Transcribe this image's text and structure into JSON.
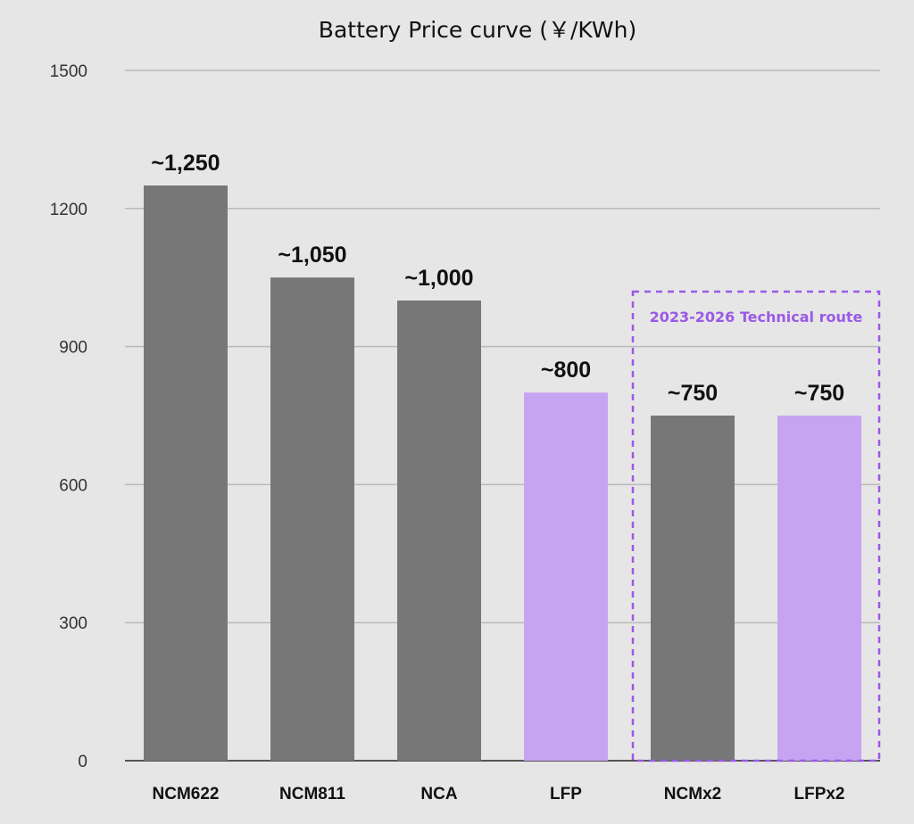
{
  "chart_data": {
    "type": "bar",
    "title": "Battery Price curve (￥/KWh)",
    "xlabel": "",
    "ylabel": "",
    "ylim": [
      0,
      1500
    ],
    "yticks": [
      "0",
      "300",
      "600",
      "900",
      "1200",
      "1500"
    ],
    "grid": true,
    "categories": [
      "NCM622",
      "NCM811",
      "NCA",
      "LFP",
      "NCMx2",
      "LFPx2"
    ],
    "values": [
      1250,
      1050,
      1000,
      800,
      750,
      750
    ],
    "data_labels": [
      "~1,250",
      "~1,050",
      "~1,000",
      "~800",
      "~750",
      "~750"
    ],
    "colors": [
      "#777777",
      "#777777",
      "#777777",
      "#c7a4f2",
      "#777777",
      "#c7a4f2"
    ],
    "annotation": {
      "text": "2023-2026 Technical route",
      "color": "#9b59e6",
      "covers_categories": [
        "NCMx2",
        "LFPx2"
      ]
    }
  }
}
